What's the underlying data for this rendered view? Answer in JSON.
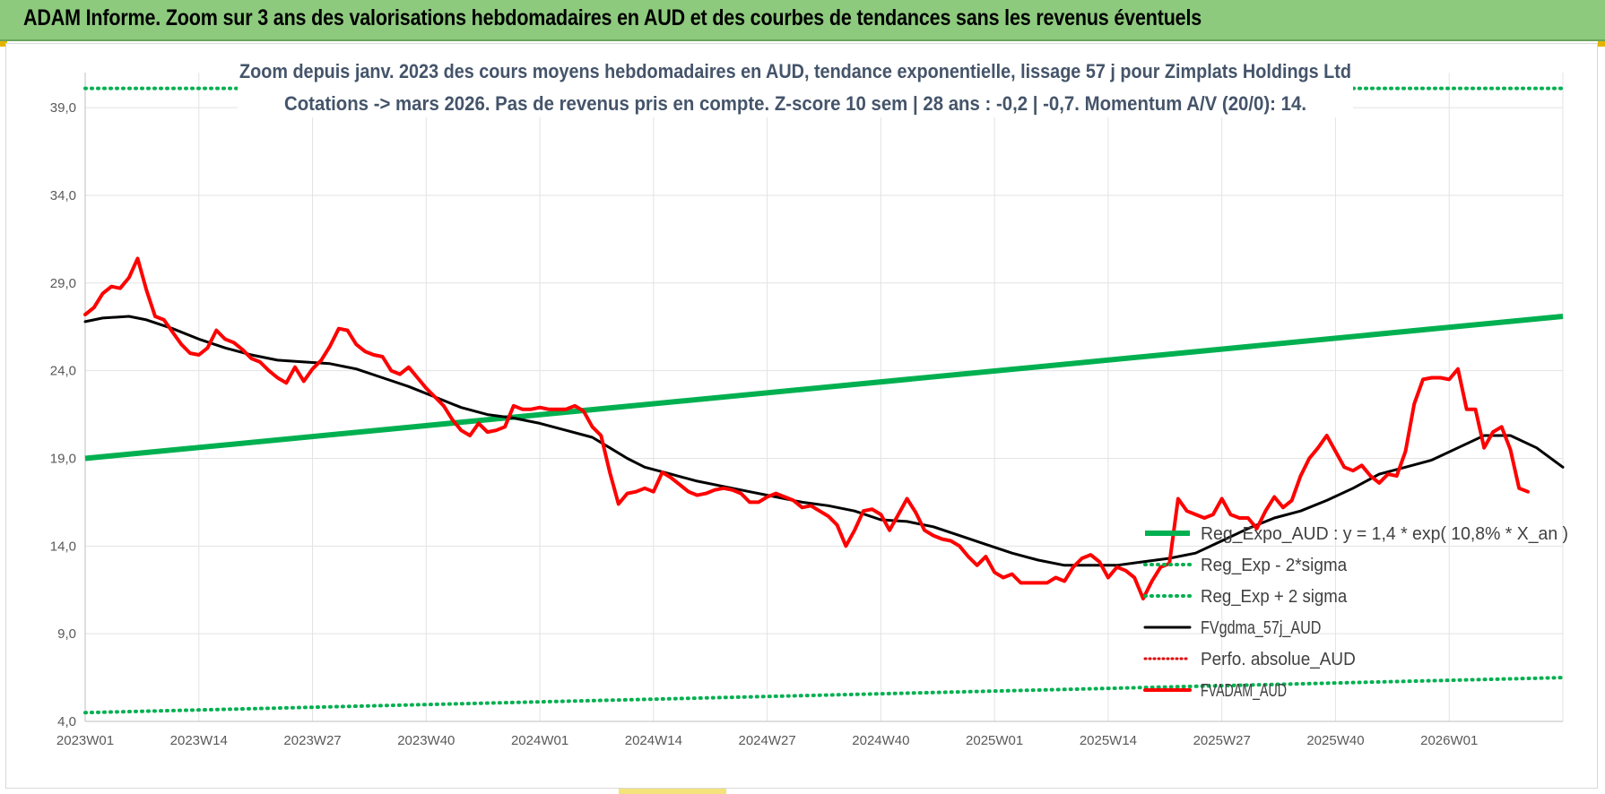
{
  "header": {
    "title": "ADAM Informe. Zoom sur 3 ans des valorisations hebdomadaires en AUD et des courbes de tendances sans les revenus éventuels"
  },
  "colors": {
    "banner": "#8dca7e",
    "reg_expo": "#00b050",
    "sigma_bands": "#00b050",
    "fvgdma": "#000000",
    "perfo": "#e00000",
    "fvadam": "#ff0000",
    "grid": "#e3e3e3"
  },
  "chart_data": {
    "type": "line",
    "title_lines": [
      "Zoom depuis janv. 2023 des cours moyens hebdomadaires en AUD, tendance exponentielle, lissage 57 j pour Zimplats Holdings Ltd",
      "Cotations -> mars 2026. Pas de revenus pris en compte. Z-score 10 sem | 28 ans : -0,2 | -0,7. Momentum A/V (20/0): 14."
    ],
    "xlabel": "",
    "ylabel": "",
    "ylim": [
      4,
      41
    ],
    "y_ticks": [
      4,
      9,
      14,
      19,
      24,
      29,
      34,
      39
    ],
    "y_tick_labels": [
      "4,0",
      "9,0",
      "14,0",
      "19,0",
      "24,0",
      "29,0",
      "34,0",
      "39,0"
    ],
    "x_range": [
      0,
      169
    ],
    "x_ticks": [
      0,
      13,
      26,
      39,
      52,
      65,
      78,
      91,
      104,
      117,
      130,
      143,
      156
    ],
    "x_tick_labels": [
      "2023W01",
      "2023W14",
      "2023W27",
      "2023W40",
      "2024W01",
      "2024W14",
      "2024W27",
      "2024W40",
      "2025W01",
      "2025W14",
      "2025W27",
      "2025W40",
      "2026W01"
    ],
    "grid": true,
    "legend_position": "bottom-right",
    "series": [
      {
        "name": "Reg_Expo_AUD : y = 1,4 * exp( 10,8% *  X_an )",
        "style": "solid-thick",
        "points": [
          [
            0,
            19.0
          ],
          [
            169,
            27.1
          ]
        ]
      },
      {
        "name": "Reg_Exp - 2*sigma",
        "style": "dotted",
        "points": [
          [
            0,
            4.5
          ],
          [
            169,
            6.5
          ]
        ]
      },
      {
        "name": "Reg_Exp + 2 sigma",
        "style": "dotted",
        "points": [
          [
            0,
            40.1
          ],
          [
            169,
            40.1
          ]
        ]
      },
      {
        "name": "FVgdma_57j_AUD",
        "style": "solid",
        "points": [
          [
            0,
            26.8
          ],
          [
            2,
            27.0
          ],
          [
            5,
            27.1
          ],
          [
            7,
            26.9
          ],
          [
            10,
            26.4
          ],
          [
            13,
            25.8
          ],
          [
            16,
            25.3
          ],
          [
            19,
            24.9
          ],
          [
            22,
            24.6
          ],
          [
            25,
            24.5
          ],
          [
            28,
            24.4
          ],
          [
            31,
            24.1
          ],
          [
            34,
            23.6
          ],
          [
            37,
            23.1
          ],
          [
            40,
            22.5
          ],
          [
            43,
            21.9
          ],
          [
            46,
            21.5
          ],
          [
            49,
            21.3
          ],
          [
            52,
            21.0
          ],
          [
            55,
            20.6
          ],
          [
            58,
            20.2
          ],
          [
            60,
            19.6
          ],
          [
            62,
            19.0
          ],
          [
            64,
            18.5
          ],
          [
            67,
            18.1
          ],
          [
            70,
            17.7
          ],
          [
            73,
            17.4
          ],
          [
            76,
            17.1
          ],
          [
            79,
            16.8
          ],
          [
            82,
            16.5
          ],
          [
            85,
            16.3
          ],
          [
            88,
            16.0
          ],
          [
            91,
            15.5
          ],
          [
            94,
            15.4
          ],
          [
            97,
            15.1
          ],
          [
            100,
            14.6
          ],
          [
            103,
            14.1
          ],
          [
            106,
            13.6
          ],
          [
            109,
            13.2
          ],
          [
            112,
            12.9
          ],
          [
            115,
            12.9
          ],
          [
            118,
            12.9
          ],
          [
            121,
            13.1
          ],
          [
            124,
            13.3
          ],
          [
            127,
            13.6
          ],
          [
            130,
            14.3
          ],
          [
            133,
            15.0
          ],
          [
            136,
            15.6
          ],
          [
            139,
            16.0
          ],
          [
            142,
            16.6
          ],
          [
            145,
            17.3
          ],
          [
            148,
            18.1
          ],
          [
            151,
            18.5
          ],
          [
            154,
            18.9
          ],
          [
            157,
            19.6
          ],
          [
            160,
            20.3
          ],
          [
            163,
            20.3
          ],
          [
            166,
            19.6
          ],
          [
            169,
            18.5
          ]
        ]
      },
      {
        "name": "Perfo. absolue_AUD",
        "style": "dotted",
        "points": []
      },
      {
        "name": "FVADAM_AUD",
        "style": "solid-thick",
        "points": [
          [
            0,
            27.2
          ],
          [
            1,
            27.6
          ],
          [
            2,
            28.4
          ],
          [
            3,
            28.8
          ],
          [
            4,
            28.7
          ],
          [
            5,
            29.3
          ],
          [
            6,
            30.4
          ],
          [
            7,
            28.6
          ],
          [
            8,
            27.1
          ],
          [
            9,
            26.9
          ],
          [
            10,
            26.2
          ],
          [
            11,
            25.5
          ],
          [
            12,
            25.0
          ],
          [
            13,
            24.9
          ],
          [
            14,
            25.3
          ],
          [
            15,
            26.3
          ],
          [
            16,
            25.8
          ],
          [
            17,
            25.6
          ],
          [
            18,
            25.2
          ],
          [
            19,
            24.7
          ],
          [
            20,
            24.5
          ],
          [
            21,
            24.0
          ],
          [
            22,
            23.6
          ],
          [
            23,
            23.3
          ],
          [
            24,
            24.2
          ],
          [
            25,
            23.4
          ],
          [
            26,
            24.1
          ],
          [
            27,
            24.6
          ],
          [
            28,
            25.4
          ],
          [
            29,
            26.4
          ],
          [
            30,
            26.3
          ],
          [
            31,
            25.5
          ],
          [
            32,
            25.1
          ],
          [
            33,
            24.9
          ],
          [
            34,
            24.8
          ],
          [
            35,
            24.0
          ],
          [
            36,
            23.8
          ],
          [
            37,
            24.2
          ],
          [
            38,
            23.6
          ],
          [
            39,
            23.0
          ],
          [
            40,
            22.5
          ],
          [
            41,
            22.0
          ],
          [
            42,
            21.2
          ],
          [
            43,
            20.6
          ],
          [
            44,
            20.3
          ],
          [
            45,
            21.0
          ],
          [
            46,
            20.5
          ],
          [
            47,
            20.6
          ],
          [
            48,
            20.8
          ],
          [
            49,
            22.0
          ],
          [
            50,
            21.8
          ],
          [
            51,
            21.8
          ],
          [
            52,
            21.9
          ],
          [
            53,
            21.8
          ],
          [
            54,
            21.8
          ],
          [
            55,
            21.8
          ],
          [
            56,
            22.0
          ],
          [
            57,
            21.7
          ],
          [
            58,
            20.8
          ],
          [
            59,
            20.3
          ],
          [
            60,
            18.2
          ],
          [
            61,
            16.4
          ],
          [
            62,
            17.0
          ],
          [
            63,
            17.1
          ],
          [
            64,
            17.3
          ],
          [
            65,
            17.1
          ],
          [
            66,
            18.2
          ],
          [
            67,
            17.9
          ],
          [
            68,
            17.5
          ],
          [
            69,
            17.1
          ],
          [
            70,
            16.9
          ],
          [
            71,
            17.0
          ],
          [
            72,
            17.2
          ],
          [
            73,
            17.3
          ],
          [
            74,
            17.2
          ],
          [
            75,
            17.0
          ],
          [
            76,
            16.5
          ],
          [
            77,
            16.5
          ],
          [
            78,
            16.8
          ],
          [
            79,
            17.0
          ],
          [
            80,
            16.8
          ],
          [
            81,
            16.6
          ],
          [
            82,
            16.2
          ],
          [
            83,
            16.3
          ],
          [
            84,
            16.0
          ],
          [
            85,
            15.7
          ],
          [
            86,
            15.2
          ],
          [
            87,
            14.0
          ],
          [
            88,
            14.9
          ],
          [
            89,
            16.0
          ],
          [
            90,
            16.1
          ],
          [
            91,
            15.8
          ],
          [
            92,
            14.9
          ],
          [
            93,
            15.8
          ],
          [
            94,
            16.7
          ],
          [
            95,
            15.9
          ],
          [
            96,
            14.9
          ],
          [
            97,
            14.6
          ],
          [
            98,
            14.4
          ],
          [
            99,
            14.3
          ],
          [
            100,
            14.0
          ],
          [
            101,
            13.4
          ],
          [
            102,
            12.9
          ],
          [
            103,
            13.4
          ],
          [
            104,
            12.5
          ],
          [
            105,
            12.2
          ],
          [
            106,
            12.4
          ],
          [
            107,
            11.9
          ],
          [
            108,
            11.9
          ],
          [
            109,
            11.9
          ],
          [
            110,
            11.9
          ],
          [
            111,
            12.2
          ],
          [
            112,
            12.0
          ],
          [
            113,
            12.8
          ],
          [
            114,
            13.3
          ],
          [
            115,
            13.5
          ],
          [
            116,
            13.1
          ],
          [
            117,
            12.2
          ],
          [
            118,
            12.8
          ],
          [
            119,
            12.6
          ],
          [
            120,
            12.2
          ],
          [
            121,
            11.0
          ],
          [
            122,
            12.0
          ],
          [
            123,
            12.8
          ],
          [
            124,
            13.0
          ],
          [
            125,
            16.7
          ],
          [
            126,
            16.0
          ],
          [
            127,
            15.8
          ],
          [
            128,
            15.6
          ],
          [
            129,
            15.8
          ],
          [
            130,
            16.7
          ],
          [
            131,
            15.8
          ],
          [
            132,
            15.6
          ],
          [
            133,
            15.6
          ],
          [
            134,
            15.0
          ],
          [
            135,
            16.0
          ],
          [
            136,
            16.8
          ],
          [
            137,
            16.2
          ],
          [
            138,
            16.6
          ],
          [
            139,
            18.0
          ],
          [
            140,
            19.0
          ],
          [
            141,
            19.6
          ],
          [
            142,
            20.3
          ],
          [
            143,
            19.4
          ],
          [
            144,
            18.5
          ],
          [
            145,
            18.3
          ],
          [
            146,
            18.6
          ],
          [
            147,
            18.0
          ],
          [
            148,
            17.6
          ],
          [
            149,
            18.1
          ],
          [
            150,
            18.0
          ],
          [
            151,
            19.4
          ],
          [
            152,
            22.1
          ],
          [
            153,
            23.5
          ],
          [
            154,
            23.6
          ],
          [
            155,
            23.6
          ],
          [
            156,
            23.5
          ],
          [
            157,
            24.1
          ],
          [
            158,
            21.8
          ],
          [
            159,
            21.8
          ],
          [
            160,
            19.6
          ],
          [
            161,
            20.5
          ],
          [
            162,
            20.8
          ],
          [
            163,
            19.5
          ],
          [
            164,
            17.3
          ],
          [
            165,
            17.1
          ]
        ]
      }
    ]
  }
}
